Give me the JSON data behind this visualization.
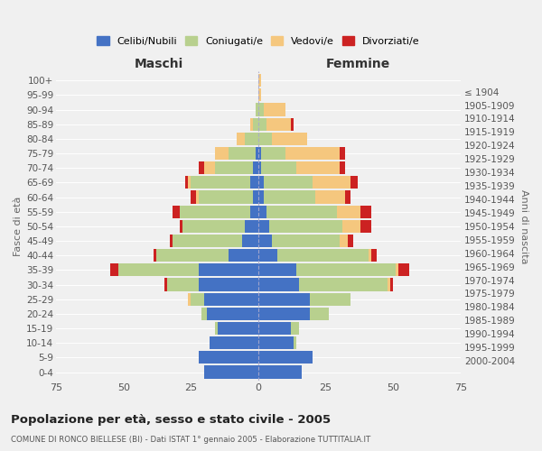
{
  "age_groups": [
    "0-4",
    "5-9",
    "10-14",
    "15-19",
    "20-24",
    "25-29",
    "30-34",
    "35-39",
    "40-44",
    "45-49",
    "50-54",
    "55-59",
    "60-64",
    "65-69",
    "70-74",
    "75-79",
    "80-84",
    "85-89",
    "90-94",
    "95-99",
    "100+"
  ],
  "birth_years": [
    "2000-2004",
    "1995-1999",
    "1990-1994",
    "1985-1989",
    "1980-1984",
    "1975-1979",
    "1970-1974",
    "1965-1969",
    "1960-1964",
    "1955-1959",
    "1950-1954",
    "1945-1949",
    "1940-1944",
    "1935-1939",
    "1930-1934",
    "1925-1929",
    "1920-1924",
    "1915-1919",
    "1910-1914",
    "1905-1909",
    "≤ 1904"
  ],
  "male": {
    "celibi": [
      20,
      22,
      18,
      15,
      19,
      20,
      22,
      22,
      11,
      6,
      5,
      3,
      2,
      3,
      2,
      1,
      0,
      0,
      0,
      0,
      0
    ],
    "coniugati": [
      0,
      0,
      0,
      1,
      2,
      5,
      12,
      30,
      27,
      26,
      23,
      26,
      20,
      22,
      14,
      10,
      5,
      2,
      1,
      0,
      0
    ],
    "vedovi": [
      0,
      0,
      0,
      0,
      0,
      1,
      0,
      0,
      0,
      0,
      0,
      0,
      1,
      1,
      4,
      5,
      3,
      1,
      0,
      0,
      0
    ],
    "divorziati": [
      0,
      0,
      0,
      0,
      0,
      0,
      1,
      3,
      1,
      1,
      1,
      3,
      2,
      1,
      2,
      0,
      0,
      0,
      0,
      0,
      0
    ]
  },
  "female": {
    "nubili": [
      16,
      20,
      13,
      12,
      19,
      19,
      15,
      14,
      7,
      5,
      4,
      3,
      2,
      2,
      1,
      1,
      0,
      0,
      0,
      0,
      0
    ],
    "coniugate": [
      0,
      0,
      1,
      3,
      7,
      15,
      33,
      37,
      34,
      25,
      27,
      26,
      19,
      18,
      13,
      9,
      5,
      3,
      2,
      0,
      0
    ],
    "vedove": [
      0,
      0,
      0,
      0,
      0,
      0,
      1,
      1,
      1,
      3,
      7,
      9,
      11,
      14,
      16,
      20,
      13,
      9,
      8,
      1,
      1
    ],
    "divorziate": [
      0,
      0,
      0,
      0,
      0,
      0,
      1,
      4,
      2,
      2,
      4,
      4,
      2,
      3,
      2,
      2,
      0,
      1,
      0,
      0,
      0
    ]
  },
  "colors": {
    "celibi": "#4472c4",
    "coniugati": "#b8d08e",
    "vedovi": "#f5c77e",
    "divorziati": "#cc2222"
  },
  "xlim": 75,
  "title": "Popolazione per età, sesso e stato civile - 2005",
  "subtitle": "COMUNE DI RONCO BIELLESE (BI) - Dati ISTAT 1° gennaio 2005 - Elaborazione TUTTITALIA.IT",
  "xlabel_left": "Maschi",
  "xlabel_right": "Femmine",
  "ylabel_left": "Fasce di età",
  "ylabel_right": "Anni di nascita",
  "background_color": "#f0f0f0",
  "grid_color": "#ffffff",
  "bar_height": 0.88
}
